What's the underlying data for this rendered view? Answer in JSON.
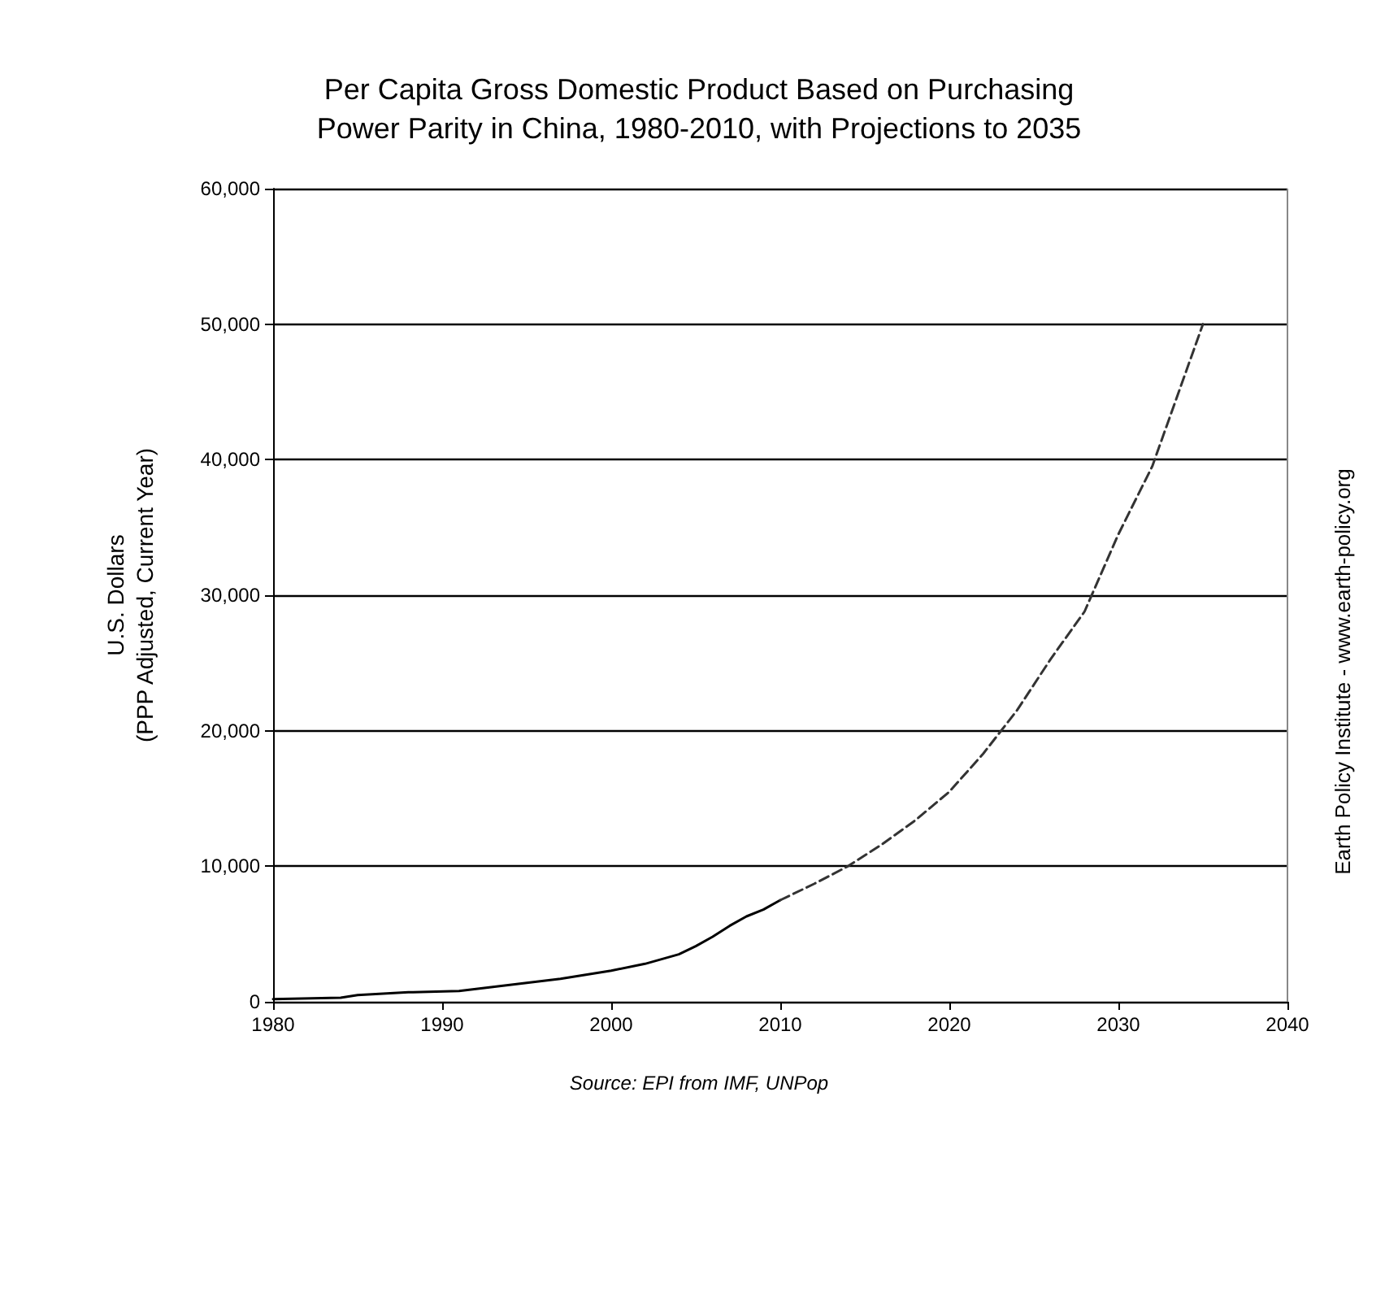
{
  "chart_data": {
    "type": "line",
    "title": "Per Capita Gross Domestic Product Based on Purchasing\nPower Parity in China, 1980-2010, with Projections to 2035",
    "ylabel": "U.S. Dollars\n(PPP Adjusted, Current Year)",
    "annotations": [
      "Source: EPI from IMF, UNPop",
      "Earth Policy Institute - www.earth-policy.org"
    ],
    "series": [
      {
        "color": "#000000",
        "line_style": "solid",
        "x": [
          1980,
          1984,
          1985,
          1988,
          1991,
          1993,
          1995,
          1997,
          2000,
          2002,
          2004,
          2005,
          2006,
          2007,
          2008,
          2009,
          2010
        ],
        "values": [
          200,
          300,
          500,
          700,
          800,
          1100,
          1400,
          1700,
          2300,
          2800,
          3500,
          4100,
          4800,
          5600,
          6300,
          6800,
          7500
        ]
      },
      {
        "color": "#333333",
        "line_style": "dashed",
        "x": [
          2010,
          2012,
          2014,
          2016,
          2018,
          2020,
          2022,
          2024,
          2026,
          2028,
          2030,
          2032,
          2034,
          2035
        ],
        "values": [
          7500,
          8700,
          10000,
          11600,
          13400,
          15500,
          18300,
          21500,
          25300,
          28800,
          34500,
          39500,
          46500,
          50000
        ]
      }
    ],
    "xlim": [
      1980,
      2040
    ],
    "xticks": [
      1980,
      1990,
      2000,
      2010,
      2020,
      2030,
      2040
    ],
    "ylim": [
      0,
      60000
    ],
    "yticks": [
      0,
      {
        "value": 10000,
        "label": "10,000"
      },
      {
        "value": 20000,
        "label": "20,000"
      },
      {
        "value": 30000,
        "label": "30,000"
      },
      {
        "value": 40000,
        "label": "40,000"
      },
      {
        "value": 50000,
        "label": "50,000"
      },
      {
        "value": 60000,
        "label": "60,000"
      }
    ],
    "grid": "y",
    "marker": "none"
  }
}
